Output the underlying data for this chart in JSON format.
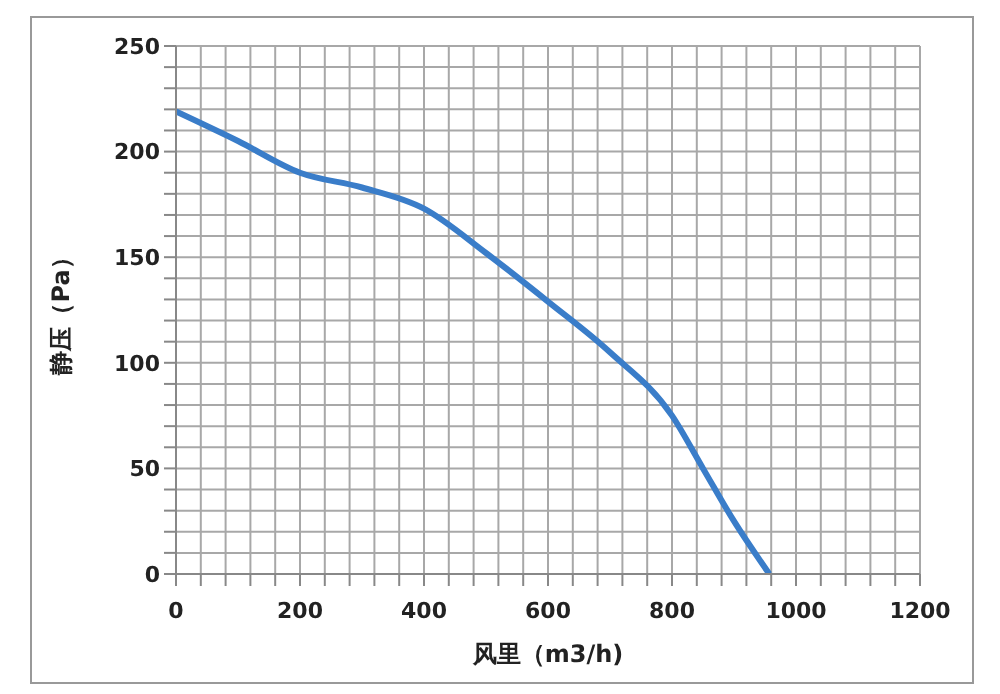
{
  "chart_data": {
    "type": "line",
    "xlabel": "风里（m3/h)",
    "ylabel": "静压（Pa）",
    "x": [
      0,
      100,
      200,
      300,
      400,
      500,
      600,
      700,
      800,
      850,
      900,
      957
    ],
    "series": [
      {
        "color": "#3a7dc9",
        "values": [
          219,
          205,
          190,
          183,
          173,
          152,
          129,
          105,
          75,
          50,
          25,
          0
        ]
      }
    ],
    "xlim": [
      0,
      1200
    ],
    "xticks": [
      0,
      {
        "value": 40,
        "label": null
      },
      {
        "value": 80,
        "label": null
      },
      {
        "value": 120,
        "label": null
      },
      {
        "value": 160,
        "label": null
      },
      200,
      {
        "value": 240,
        "label": null
      },
      {
        "value": 280,
        "label": null
      },
      {
        "value": 320,
        "label": null
      },
      {
        "value": 360,
        "label": null
      },
      400,
      {
        "value": 440,
        "label": null
      },
      {
        "value": 480,
        "label": null
      },
      {
        "value": 520,
        "label": null
      },
      {
        "value": 560,
        "label": null
      },
      600,
      {
        "value": 640,
        "label": null
      },
      {
        "value": 680,
        "label": null
      },
      {
        "value": 720,
        "label": null
      },
      {
        "value": 760,
        "label": null
      },
      800,
      {
        "value": 840,
        "label": null
      },
      {
        "value": 880,
        "label": null
      },
      {
        "value": 920,
        "label": null
      },
      {
        "value": 960,
        "label": null
      },
      1000,
      {
        "value": 1040,
        "label": null
      },
      {
        "value": 1080,
        "label": null
      },
      {
        "value": 1120,
        "label": null
      },
      {
        "value": 1160,
        "label": null
      },
      1200
    ],
    "ylim": [
      0,
      250
    ],
    "yticks": [
      0,
      {
        "value": 10,
        "label": null
      },
      {
        "value": 20,
        "label": null
      },
      {
        "value": 30,
        "label": null
      },
      {
        "value": 40,
        "label": null
      },
      50,
      {
        "value": 60,
        "label": null
      },
      {
        "value": 70,
        "label": null
      },
      {
        "value": 80,
        "label": null
      },
      {
        "value": 90,
        "label": null
      },
      100,
      {
        "value": 110,
        "label": null
      },
      {
        "value": 120,
        "label": null
      },
      {
        "value": 130,
        "label": null
      },
      {
        "value": 140,
        "label": null
      },
      150,
      {
        "value": 160,
        "label": null
      },
      {
        "value": 170,
        "label": null
      },
      {
        "value": 180,
        "label": null
      },
      {
        "value": 190,
        "label": null
      },
      200,
      {
        "value": 210,
        "label": null
      },
      {
        "value": 220,
        "label": null
      },
      {
        "value": 230,
        "label": null
      },
      {
        "value": 240,
        "label": null
      },
      250
    ],
    "grid": true,
    "marker": "none",
    "line_style": "solid"
  }
}
